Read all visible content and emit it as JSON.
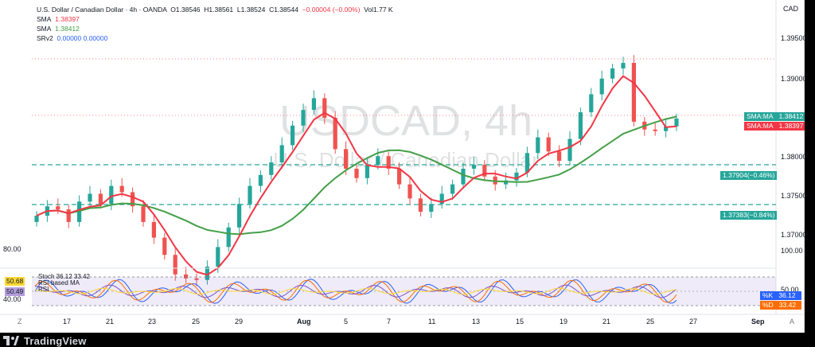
{
  "window": {
    "title": "U.S. Dollar / Canadian Dollar · 4h · OANDA"
  },
  "ohlc": {
    "o": "O1.38546",
    "h": "H1.38561",
    "l": "L1.38524",
    "c": "C1.38544",
    "chg": "−0.00004 (−0.00%)",
    "vol": "Vol1.77 K"
  },
  "indicators": [
    {
      "name": "SMA",
      "value": "1.38397"
    },
    {
      "name": "SMA",
      "value": "1.38412"
    },
    {
      "name": "SRv2",
      "value": "0.00000  0.00000"
    }
  ],
  "currency": "CAD",
  "watermark": {
    "line1": "USDCAD, 4h",
    "line2": "U.S. Dollar / Canadian Dollar"
  },
  "price_axis": [
    "1.39500",
    "1.39000",
    "1.38000",
    "1.37500",
    "1.37000"
  ],
  "tags": {
    "sma1": {
      "label": "SMA:MA",
      "value": "1.38412"
    },
    "sma2": {
      "label": "SMA:MA",
      "value": "1.38397"
    },
    "level1": "1.37904(−0.46%)",
    "level2": "1.37383(−0.84%)"
  },
  "rsi_axis": [
    "80.00",
    "40.00",
    "100.00",
    "50.00"
  ],
  "rsi_legend": {
    "stoch": "Stoch 36.12 33.42",
    "rsi_based": "RSI-based MA",
    "rsi": "RSI",
    "badge1": "50.68",
    "badge2": "50.49"
  },
  "rsi_tags": {
    "k_label": "%K",
    "k": "36.12",
    "d_label": "%D",
    "d": "33.42"
  },
  "x_axis": [
    "17",
    "21",
    "23",
    "25",
    "29",
    "Aug",
    "5",
    "7",
    "11",
    "13",
    "15",
    "19",
    "21",
    "25",
    "27",
    "Sep"
  ],
  "footer": {
    "brand": "TradingView",
    "z_left": "Z",
    "a_right": "A"
  },
  "chart_data": {
    "type": "candlestick",
    "symbol": "USDCAD",
    "timeframe": "4h",
    "ylim": [
      1.3665,
      1.3985
    ],
    "close_series": [
      1.373,
      1.3742,
      1.3738,
      1.3722,
      1.3748,
      1.3758,
      1.3745,
      1.3768,
      1.376,
      1.3742,
      1.3722,
      1.3702,
      1.368,
      1.3655,
      1.365,
      1.3648,
      1.3665,
      1.369,
      1.3715,
      1.3745,
      1.3768,
      1.3782,
      1.3798,
      1.382,
      1.3845,
      1.3865,
      1.388,
      1.3855,
      1.3815,
      1.379,
      1.3778,
      1.3795,
      1.3806,
      1.379,
      1.377,
      1.3752,
      1.3735,
      1.3745,
      1.3758,
      1.377,
      1.379,
      1.3795,
      1.378,
      1.377,
      1.3775,
      1.3785,
      1.381,
      1.383,
      1.3812,
      1.38,
      1.3828,
      1.3862,
      1.3885,
      1.3905,
      1.3918,
      1.3925,
      1.385,
      1.384,
      1.3838,
      1.3844,
      1.3854
    ]
  }
}
